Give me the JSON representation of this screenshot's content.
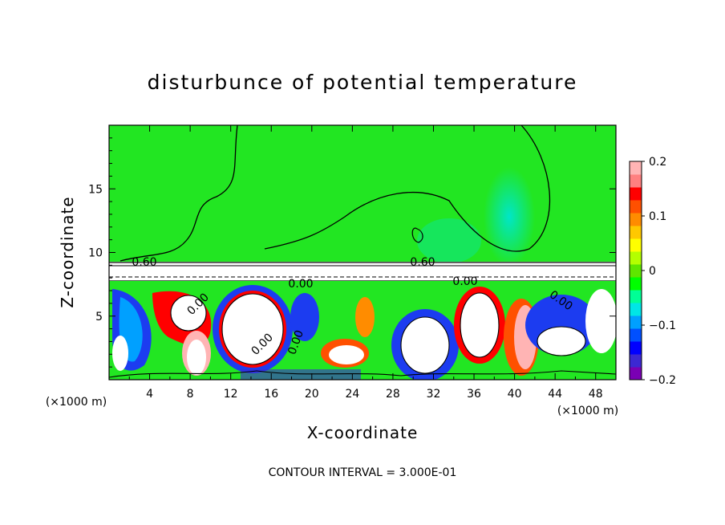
{
  "chart_data": {
    "type": "heatmap",
    "title": "disturbunce of potential temperature",
    "xlabel": "X-coordinate",
    "ylabel": "Z-coordinate",
    "x_unit_label": "(×1000 m)",
    "x_unit_label_right": "(×1000 m)",
    "xlim": [
      0,
      50
    ],
    "ylim": [
      0,
      20
    ],
    "x_ticks": [
      "4",
      "8",
      "12",
      "16",
      "20",
      "24",
      "28",
      "32",
      "36",
      "40",
      "44",
      "48"
    ],
    "y_ticks": [
      "5",
      "10",
      "15"
    ],
    "colorbar": {
      "range": [
        -0.2,
        0.2
      ],
      "tick_labels": [
        "0.2",
        "0.1",
        "0",
        "−0.1",
        "−0.2"
      ],
      "colors": [
        "#7a00b4",
        "#3c28d2",
        "#0000ff",
        "#0050ff",
        "#00a0ff",
        "#00e6e6",
        "#00ff96",
        "#00ff00",
        "#5fe600",
        "#b4ff00",
        "#ffff00",
        "#ffc800",
        "#ff8c00",
        "#ff5000",
        "#ff0000",
        "#ff8080",
        "#ffb4b4"
      ]
    },
    "contour_labels": [
      "0.60",
      "0.60",
      "0.00",
      "0.00",
      "0.00",
      "0.00",
      "0.00",
      "0.00"
    ],
    "footer": "CONTOUR INTERVAL = 3.000E-01",
    "colors": {
      "upper_field": "#22e622",
      "plume": "#00e6c8"
    }
  }
}
